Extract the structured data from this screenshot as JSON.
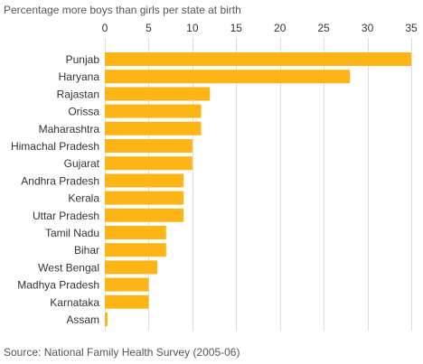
{
  "chart_data": {
    "type": "bar",
    "orientation": "horizontal",
    "title": "Percentage more boys than girls per state at birth",
    "source": "Source: National Family Health Survey (2005-06)",
    "categories": [
      "Punjab",
      "Haryana",
      "Rajastan",
      "Orissa",
      "Maharashtra",
      "Himachal Pradesh",
      "Gujarat",
      "Andhra Pradesh",
      "Kerala",
      "Uttar Pradesh",
      "Tamil Nadu",
      "Bihar",
      "West Bengal",
      "Madhya Pradesh",
      "Karnataka",
      "Assam"
    ],
    "values": [
      35,
      28,
      12,
      11,
      11,
      10,
      10,
      9,
      9,
      9,
      7,
      7,
      6,
      5,
      5,
      0.3
    ],
    "xlim": [
      0,
      35
    ],
    "x_ticks": [
      "0",
      "5",
      "10",
      "15",
      "20",
      "25",
      "30",
      "35"
    ],
    "x_tick_values": [
      0,
      5,
      10,
      15,
      20,
      25,
      30,
      35
    ],
    "axis_position": "top",
    "grid": true,
    "colors": {
      "bar": "#FDB515",
      "grid": "#dddddd",
      "text": "#333333",
      "muted": "#555555"
    }
  }
}
